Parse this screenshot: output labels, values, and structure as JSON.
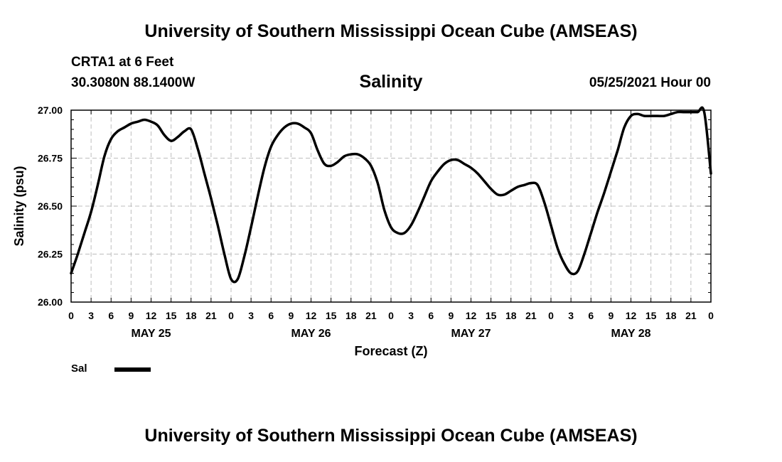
{
  "header": {
    "top_title": "University of Southern Mississippi Ocean Cube (AMSEAS)",
    "station": "CRTA1 at 6 Feet",
    "coords": "30.3080N  88.1400W",
    "chart_title": "Salinity",
    "datetime": "05/25/2021 Hour 00",
    "bottom_title": "University of Southern Mississippi Ocean Cube (AMSEAS)"
  },
  "legend": {
    "label": "Sal",
    "color": "#000000"
  },
  "chart_data": {
    "type": "line",
    "title": "Salinity",
    "xlabel": "Forecast (Z)",
    "ylabel": "Salinity (psu)",
    "ylim": [
      26.0,
      27.0
    ],
    "xlim": [
      0,
      96
    ],
    "grid": true,
    "yticks": [
      "26.00",
      "26.25",
      "26.50",
      "26.75",
      "27.00"
    ],
    "xtick_labels": [
      "0",
      "3",
      "6",
      "9",
      "12",
      "15",
      "18",
      "21",
      "0",
      "3",
      "6",
      "9",
      "12",
      "15",
      "18",
      "21",
      "0",
      "3",
      "6",
      "9",
      "12",
      "15",
      "18",
      "21",
      "0",
      "3",
      "6",
      "9",
      "12",
      "15",
      "18",
      "21",
      "0"
    ],
    "day_labels": [
      {
        "label": "MAY 25",
        "hour": 12
      },
      {
        "label": "MAY 26",
        "hour": 36
      },
      {
        "label": "MAY 27",
        "hour": 60
      },
      {
        "label": "MAY 28",
        "hour": 84
      }
    ],
    "series": [
      {
        "name": "Sal",
        "color": "#000000",
        "x": [
          0,
          1,
          2,
          3,
          4,
          5,
          6,
          7,
          8,
          9,
          10,
          11,
          12,
          13,
          14,
          15,
          16,
          17,
          18,
          19,
          20,
          21,
          22,
          23,
          24,
          25,
          26,
          27,
          28,
          29,
          30,
          31,
          32,
          33,
          34,
          35,
          36,
          37,
          38,
          39,
          40,
          41,
          42,
          43,
          44,
          45,
          46,
          47,
          48,
          49,
          50,
          51,
          52,
          53,
          54,
          55,
          56,
          57,
          58,
          59,
          60,
          61,
          62,
          63,
          64,
          65,
          66,
          67,
          68,
          69,
          70,
          71,
          72,
          73,
          74,
          75,
          76,
          77,
          78,
          79,
          80,
          81,
          82,
          83,
          84,
          85,
          86,
          87,
          88,
          89,
          90,
          91,
          92,
          93,
          94,
          95,
          96
        ],
        "values": [
          26.15,
          26.25,
          26.36,
          26.47,
          26.61,
          26.76,
          26.85,
          26.89,
          26.91,
          26.93,
          26.94,
          26.95,
          26.94,
          26.92,
          26.87,
          26.84,
          26.86,
          26.89,
          26.9,
          26.8,
          26.67,
          26.54,
          26.4,
          26.25,
          26.12,
          26.12,
          26.24,
          26.39,
          26.55,
          26.7,
          26.81,
          26.87,
          26.91,
          26.93,
          26.93,
          26.91,
          26.88,
          26.79,
          26.72,
          26.71,
          26.73,
          26.76,
          26.77,
          26.77,
          26.75,
          26.71,
          26.62,
          26.48,
          26.39,
          26.36,
          26.36,
          26.4,
          26.47,
          26.55,
          26.63,
          26.68,
          26.72,
          26.74,
          26.74,
          26.72,
          26.7,
          26.67,
          26.63,
          26.59,
          26.56,
          26.56,
          26.58,
          26.6,
          26.61,
          26.62,
          26.61,
          26.52,
          26.4,
          26.28,
          26.2,
          26.15,
          26.16,
          26.25,
          26.36,
          26.47,
          26.57,
          26.68,
          26.79,
          26.91,
          26.97,
          26.98,
          26.97,
          26.97,
          26.97,
          26.97,
          26.98,
          26.99,
          26.99,
          26.99,
          26.99,
          26.99,
          26.67
        ]
      }
    ]
  }
}
